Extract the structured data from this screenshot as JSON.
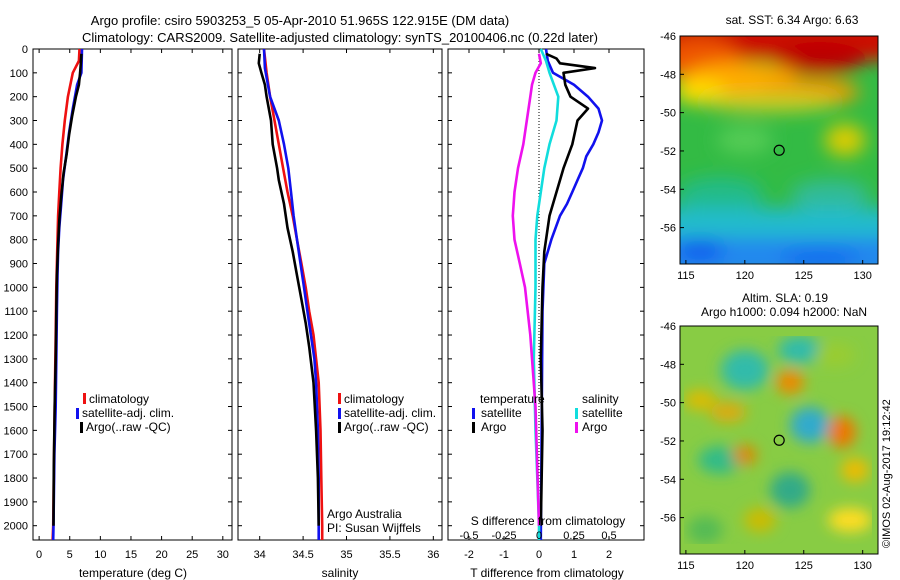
{
  "title": {
    "line1": "Argo profile: csiro 5903253_5 05-Apr-2010 51.965S 122.915E (DM data)",
    "line2": "Climatology: CARS2009. Satellite-adjusted climatology: synTS_20100406.nc (0.22d later)"
  },
  "colors": {
    "climatology": "#ee1111",
    "satellite": "#1111ee",
    "argo": "#000000",
    "satellite_diff": "#11dddd",
    "argo_diff": "#ee11ee"
  },
  "depth_axis": {
    "ticks": [
      0,
      100,
      200,
      300,
      400,
      500,
      600,
      700,
      800,
      900,
      1000,
      1100,
      1200,
      1300,
      1400,
      1500,
      1600,
      1700,
      1800,
      1900,
      2000
    ],
    "range": [
      0,
      2060
    ]
  },
  "chart_data": [
    {
      "type": "line",
      "id": "temperature",
      "xlabel": "temperature (deg C)",
      "ylabel": "",
      "xlim": [
        -1,
        31.5
      ],
      "ylim": [
        2060,
        0
      ],
      "xticks": [
        0,
        5,
        10,
        15,
        20,
        25,
        30
      ],
      "legend": [
        "climatology",
        "satellite-adj. clim.",
        "Argo(..raw -QC)"
      ],
      "legend_position": "bottom-center",
      "series": [
        {
          "name": "climatology",
          "color_key": "climatology",
          "x": [
            6.6,
            6.5,
            5.5,
            4.7,
            4.2,
            3.8,
            3.5,
            3.3,
            3.1,
            3.0,
            2.9,
            2.8,
            2.7,
            2.6,
            2.5,
            2.4,
            2.35,
            2.3,
            2.2
          ],
          "y": [
            0,
            50,
            100,
            200,
            300,
            400,
            500,
            600,
            700,
            800,
            900,
            1000,
            1200,
            1400,
            1600,
            1800,
            1900,
            2000,
            2060
          ]
        },
        {
          "name": "satellite-adj. clim.",
          "color_key": "satellite",
          "x": [
            7.0,
            6.95,
            6.9,
            6.2,
            5.5,
            4.9,
            4.4,
            3.9,
            3.6,
            3.3,
            3.1,
            3.0,
            2.9,
            2.8,
            2.7,
            2.5,
            2.4,
            2.35,
            2.3
          ],
          "y": [
            0,
            50,
            100,
            150,
            250,
            350,
            450,
            550,
            650,
            750,
            850,
            950,
            1100,
            1300,
            1500,
            1700,
            1900,
            2000,
            2060
          ]
        },
        {
          "name": "Argo(..raw -QC)",
          "color_key": "argo",
          "x": [
            6.9,
            6.8,
            6.7,
            6.5,
            6.0,
            5.4,
            4.9,
            4.5,
            4.0,
            3.6,
            3.3,
            3.1,
            2.9,
            2.8,
            2.7,
            2.55,
            2.4,
            2.35
          ],
          "y": [
            20,
            60,
            100,
            150,
            200,
            280,
            360,
            440,
            520,
            620,
            720,
            820,
            950,
            1100,
            1300,
            1500,
            1750,
            2000
          ]
        }
      ]
    },
    {
      "type": "line",
      "id": "salinity",
      "xlabel": "salinity",
      "ylabel": "",
      "xlim": [
        33.75,
        36.1
      ],
      "ylim": [
        2060,
        0
      ],
      "xticks": [
        34,
        34.5,
        35,
        35.5,
        36
      ],
      "xticklabels": [
        "34",
        "34.5",
        "35",
        "35.5",
        "36"
      ],
      "legend": [
        "climatology",
        "satellite-adj. clim.",
        "Argo(..raw -QC)"
      ],
      "legend_position": "bottom-center",
      "annotations": [
        "Argo Australia",
        "PI: Susan Wijffels"
      ],
      "series": [
        {
          "name": "climatology",
          "color_key": "climatology",
          "x": [
            34.05,
            34.08,
            34.12,
            34.17,
            34.22,
            34.27,
            34.32,
            34.38,
            34.43,
            34.48,
            34.53,
            34.57,
            34.62,
            34.65,
            34.68,
            34.7,
            34.71,
            34.72,
            34.72
          ],
          "y": [
            0,
            100,
            200,
            300,
            400,
            500,
            600,
            700,
            800,
            900,
            1000,
            1100,
            1200,
            1300,
            1400,
            1600,
            1800,
            2000,
            2060
          ]
        },
        {
          "name": "satellite-adj. clim.",
          "color_key": "satellite",
          "x": [
            34.05,
            34.06,
            34.12,
            34.22,
            34.28,
            34.33,
            34.36,
            34.39,
            34.43,
            34.47,
            34.51,
            34.55,
            34.59,
            34.63,
            34.65,
            34.67,
            34.68,
            34.68
          ],
          "y": [
            0,
            80,
            200,
            300,
            400,
            500,
            600,
            700,
            800,
            900,
            1000,
            1100,
            1200,
            1300,
            1400,
            1600,
            1800,
            2060
          ]
        },
        {
          "name": "Argo(..raw -QC)",
          "color_key": "argo",
          "x": [
            34.0,
            33.99,
            34.02,
            34.06,
            34.08,
            34.13,
            34.15,
            34.2,
            34.22,
            34.28,
            34.32,
            34.38,
            34.43,
            34.48,
            34.53,
            34.57,
            34.62,
            34.65,
            34.67,
            34.68
          ],
          "y": [
            20,
            60,
            100,
            150,
            200,
            300,
            400,
            500,
            550,
            650,
            750,
            850,
            950,
            1050,
            1150,
            1250,
            1400,
            1600,
            1800,
            2000
          ]
        }
      ]
    },
    {
      "type": "line",
      "id": "differences",
      "xlabel": "T difference from climatology",
      "top_label": "S difference from climatology",
      "xlim": [
        -2.6,
        3.0
      ],
      "ylim": [
        2060,
        0
      ],
      "xticks": [
        -2,
        -1,
        0,
        1,
        2
      ],
      "s_ticklabels": [
        "-0.5",
        "-0.25",
        "0",
        "0.25",
        "0.5"
      ],
      "s_to_t_scale": 4,
      "legend_groups": [
        {
          "title": "temperature",
          "items": [
            "satellite",
            "Argo"
          ]
        },
        {
          "title": "salinity",
          "items": [
            "satellite",
            "Argo"
          ]
        }
      ],
      "legend_position": "bottom-center",
      "series": [
        {
          "name": "satellite",
          "group": "temperature",
          "color_key": "satellite",
          "x": [
            0.2,
            0.25,
            0.4,
            1.0,
            1.4,
            1.7,
            1.8,
            1.7,
            1.55,
            1.35,
            1.25,
            1.1,
            0.95,
            0.8,
            0.6,
            0.35,
            0.15,
            0.1,
            0.08,
            0.05
          ],
          "y": [
            0,
            50,
            100,
            150,
            200,
            250,
            300,
            350,
            400,
            450,
            500,
            550,
            600,
            650,
            700,
            800,
            900,
            1100,
            1500,
            2060
          ]
        },
        {
          "name": "Argo",
          "group": "temperature",
          "color_key": "argo",
          "x": [
            0.2,
            0.5,
            0.6,
            1.6,
            0.7,
            0.75,
            0.9,
            1.4,
            1.1,
            0.95,
            0.7,
            0.5,
            0.3,
            0.15,
            0.1,
            0.05,
            0.1,
            0.05
          ],
          "y": [
            20,
            40,
            60,
            80,
            100,
            150,
            200,
            250,
            300,
            400,
            500,
            600,
            700,
            850,
            1000,
            1300,
            1600,
            2000
          ]
        },
        {
          "name": "satellite",
          "group": "salinity",
          "color_key": "satellite_diff",
          "x": [
            0.05,
            0.2,
            0.3,
            0.55,
            0.5,
            0.3,
            0.15,
            0.05,
            -0.05,
            -0.1,
            -0.1,
            -0.15,
            -0.1,
            -0.05,
            0.0,
            0.0
          ],
          "y": [
            0,
            50,
            100,
            200,
            300,
            400,
            500,
            600,
            700,
            800,
            1000,
            1300,
            1600,
            1800,
            2000,
            2060
          ]
        },
        {
          "name": "Argo",
          "group": "salinity",
          "color_key": "argo_diff",
          "x": [
            0.0,
            0.05,
            -0.1,
            -0.2,
            -0.25,
            -0.35,
            -0.45,
            -0.6,
            -0.7,
            -0.75,
            -0.7,
            -0.55,
            -0.4,
            -0.25,
            -0.1,
            0.0
          ],
          "y": [
            20,
            60,
            100,
            150,
            200,
            300,
            400,
            500,
            600,
            700,
            800,
            900,
            1000,
            1200,
            1500,
            2000
          ]
        }
      ]
    }
  ],
  "maps": [
    {
      "id": "sst",
      "title": "sat. SST: 6.34 Argo: 6.63",
      "xticks": [
        "115",
        "120",
        "125",
        "130"
      ],
      "yticks": [
        "-46",
        "-48",
        "-50",
        "-52",
        "-54",
        "-56"
      ],
      "xlim": [
        114.5,
        131.3
      ],
      "ylim": [
        -57.9,
        -46
      ],
      "marker": {
        "lon": 122.915,
        "lat": -51.965
      }
    },
    {
      "id": "sla",
      "title_line1": "Altim. SLA: 0.19",
      "title_line2": "Argo h1000: 0.094 h2000: NaN",
      "xticks": [
        "115",
        "120",
        "125",
        "130"
      ],
      "yticks": [
        "-46",
        "-48",
        "-50",
        "-52",
        "-54",
        "-56"
      ],
      "xlim": [
        114.5,
        131.3
      ],
      "ylim": [
        -57.9,
        -46
      ],
      "marker": {
        "lon": 122.915,
        "lat": -51.965
      }
    }
  ],
  "credit": "©IMOS 02-Aug-2017 19:12:42"
}
